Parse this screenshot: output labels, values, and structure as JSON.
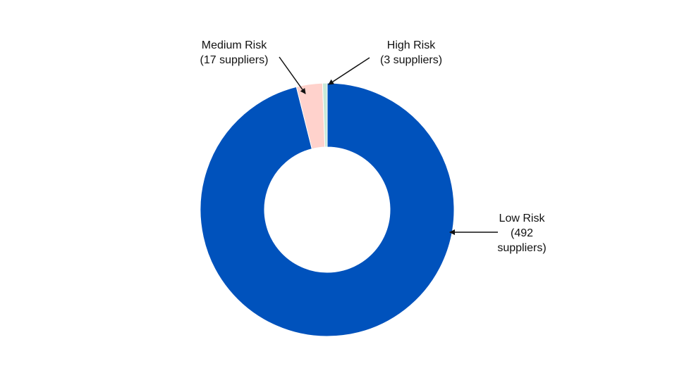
{
  "chart_data": {
    "type": "pie",
    "variant": "donut",
    "slices": [
      {
        "name": "Low Risk",
        "value": 492,
        "detail_lines": [
          "(492",
          "suppliers)"
        ],
        "color": "#0052BC"
      },
      {
        "name": "Medium Risk",
        "value": 17,
        "detail_lines": [
          "(17 suppliers)"
        ],
        "color": "#FFD2CC"
      },
      {
        "name": "High Risk",
        "value": 3,
        "detail_lines": [
          "(3 suppliers)"
        ],
        "color": "#C9EAD9"
      }
    ],
    "title": "",
    "legend": "none",
    "annotations": "arrow-callouts"
  }
}
